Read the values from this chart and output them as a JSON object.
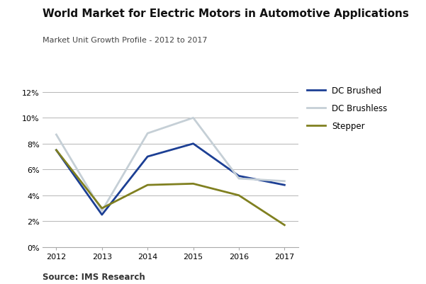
{
  "title": "World Market for Electric Motors in Automotive Applications",
  "subtitle": "Market Unit Growth Profile - 2012 to 2017",
  "source": "Source: IMS Research",
  "years": [
    2012,
    2013,
    2014,
    2015,
    2016,
    2017
  ],
  "dc_brushed": [
    0.075,
    0.025,
    0.07,
    0.08,
    0.055,
    0.048
  ],
  "dc_brushless": [
    0.087,
    0.028,
    0.088,
    0.1,
    0.053,
    0.051
  ],
  "stepper": [
    0.075,
    0.03,
    0.048,
    0.049,
    0.04,
    0.017
  ],
  "dc_brushed_color": "#1c3f94",
  "dc_brushless_color": "#c5cfd6",
  "stepper_color": "#808020",
  "background_color": "#ffffff",
  "ylim": [
    0,
    0.13
  ],
  "yticks": [
    0,
    0.02,
    0.04,
    0.06,
    0.08,
    0.1,
    0.12
  ],
  "grid_color": "#aaaaaa",
  "title_fontsize": 11,
  "subtitle_fontsize": 8,
  "label_fontsize": 8,
  "legend_fontsize": 8.5,
  "source_fontsize": 8.5,
  "line_width": 2.0
}
